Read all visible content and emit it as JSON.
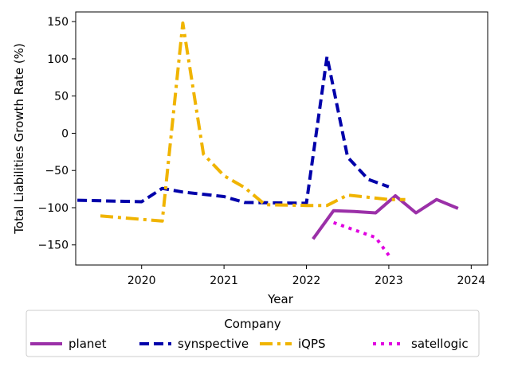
{
  "chart_data": {
    "type": "line",
    "xlabel": "Year",
    "ylabel": "Total Liabilities Growth Rate (%)",
    "xlim": [
      2019.2,
      2024.2
    ],
    "ylim": [
      -177,
      163
    ],
    "x_ticks": [
      2020,
      2021,
      2022,
      2023,
      2024
    ],
    "y_ticks": [
      -150,
      -100,
      -50,
      0,
      50,
      100,
      150
    ],
    "grid": false,
    "legend": {
      "title": "Company",
      "placement": "bottom-center",
      "columns": 4
    },
    "series": [
      {
        "name": "planet",
        "color": "#9b30a8",
        "dash": "solid",
        "points": [
          [
            2022.08,
            -142
          ],
          [
            2022.33,
            -104
          ],
          [
            2022.58,
            -105
          ],
          [
            2022.84,
            -107
          ],
          [
            2023.08,
            -84
          ],
          [
            2023.33,
            -107
          ],
          [
            2023.58,
            -89
          ],
          [
            2023.84,
            -101
          ]
        ]
      },
      {
        "name": "synspective",
        "color": "#0000aa",
        "dash": "dashed",
        "points": [
          [
            2019.22,
            -90
          ],
          [
            2020.0,
            -92
          ],
          [
            2020.25,
            -74
          ],
          [
            2020.5,
            -79
          ],
          [
            2021.0,
            -85
          ],
          [
            2021.25,
            -93
          ],
          [
            2022.0,
            -94
          ],
          [
            2022.25,
            103
          ],
          [
            2022.5,
            -32
          ],
          [
            2022.75,
            -62
          ],
          [
            2023.0,
            -72
          ]
        ]
      },
      {
        "name": "iQPS",
        "color": "#f0b400",
        "dash": "dashdot",
        "points": [
          [
            2019.5,
            -111
          ],
          [
            2020.25,
            -118
          ],
          [
            2020.5,
            148
          ],
          [
            2020.75,
            -28
          ],
          [
            2021.0,
            -57
          ],
          [
            2021.25,
            -73
          ],
          [
            2021.5,
            -96
          ],
          [
            2022.0,
            -97
          ],
          [
            2022.25,
            -97
          ],
          [
            2022.5,
            -83
          ],
          [
            2022.75,
            -86
          ],
          [
            2023.0,
            -89
          ],
          [
            2023.2,
            -89
          ]
        ]
      },
      {
        "name": "satellogic",
        "color": "#e000e0",
        "dash": "dotted",
        "points": [
          [
            2022.33,
            -120
          ],
          [
            2022.84,
            -140
          ],
          [
            2023.0,
            -164
          ]
        ]
      }
    ]
  }
}
